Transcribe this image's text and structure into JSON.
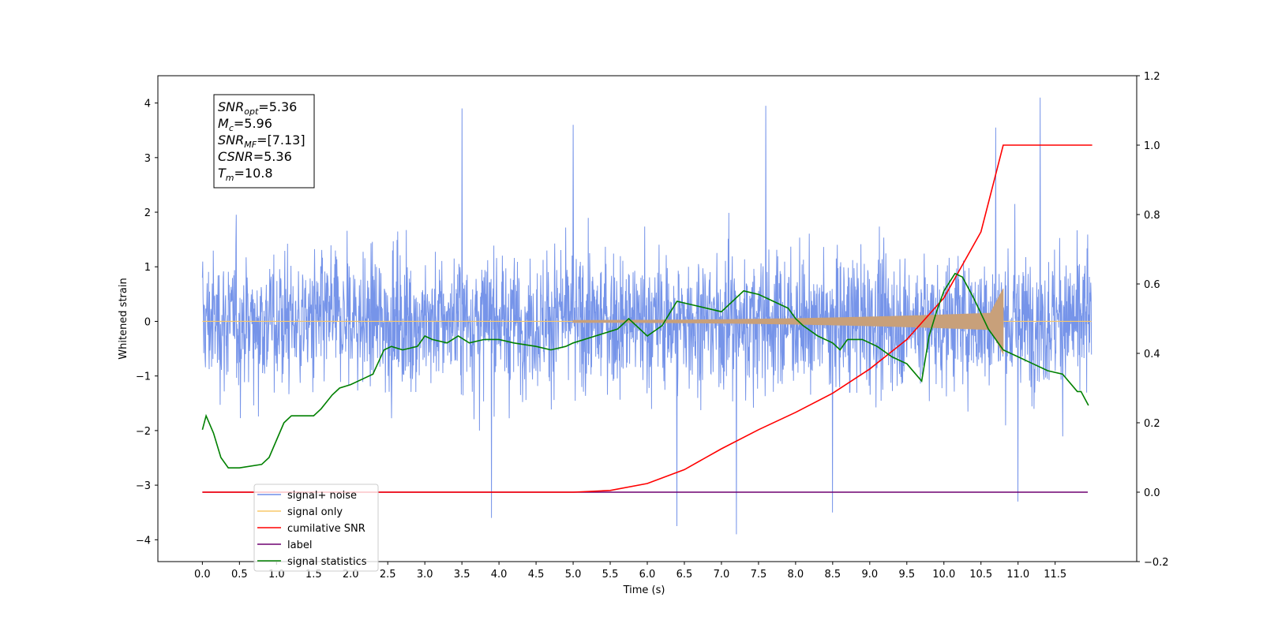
{
  "chart_data": {
    "type": "line",
    "xlabel": "Time (s)",
    "ylabel": "Whitened strain",
    "xlim": [
      -0.6,
      12.6
    ],
    "ylim": [
      -4.4,
      4.5
    ],
    "y2lim": [
      -0.2,
      1.2
    ],
    "xticks": [
      "0.0",
      "0.5",
      "1.0",
      "1.5",
      "2.0",
      "2.5",
      "3.0",
      "3.5",
      "4.0",
      "4.5",
      "5.0",
      "5.5",
      "6.0",
      "6.5",
      "7.0",
      "7.5",
      "8.0",
      "8.5",
      "9.0",
      "9.5",
      "10.0",
      "10.5",
      "11.0",
      "11.5"
    ],
    "yticks": [
      "4",
      "3",
      "2",
      "1",
      "0",
      "−1",
      "−2",
      "−3",
      "−4"
    ],
    "y2ticks": [
      "1.2",
      "1.0",
      "0.8",
      "0.6",
      "0.4",
      "0.2",
      "0.0",
      "−0.2"
    ],
    "stats_box": [
      {
        "sym": "SNR",
        "sub": "opt",
        "value": "=5.36"
      },
      {
        "sym": "M",
        "sub": "c",
        "value": "=5.96"
      },
      {
        "sym": "SNR",
        "sub": "MF",
        "value": "=[7.13]"
      },
      {
        "sym": "CSNR",
        "sub": "",
        "value": "=5.36"
      },
      {
        "sym": "T",
        "sub": "m",
        "value": "=10.8"
      }
    ],
    "legend": [
      {
        "label": "signal+ noise",
        "color": "#6f8ee8"
      },
      {
        "label": "signal only",
        "color": "#f8c86a"
      },
      {
        "label": "cumilative SNR",
        "color": "#ff0000"
      },
      {
        "label": "label",
        "color": "#6e0070"
      },
      {
        "label": "signal statistics",
        "color": "#008000"
      }
    ],
    "series": [
      {
        "name": "signal+ noise",
        "color": "#6f8ee8",
        "axis": "left",
        "x_range": [
          0.0,
          11.99
        ],
        "envelope": {
          "typical": 2.0,
          "max": 4.1,
          "min": -3.9
        },
        "peaks": [
          [
            3.5,
            3.9
          ],
          [
            7.6,
            3.95
          ],
          [
            11.3,
            4.1
          ],
          [
            5.0,
            3.6
          ],
          [
            10.7,
            3.55
          ],
          [
            7.2,
            -3.9
          ],
          [
            6.4,
            -3.75
          ],
          [
            3.9,
            -3.6
          ],
          [
            8.5,
            -3.5
          ],
          [
            11.0,
            -3.3
          ]
        ]
      },
      {
        "name": "signal only",
        "color": "#c8a07a",
        "axis": "left",
        "x_range": [
          0.0,
          11.99
        ],
        "chirp_end": 10.8,
        "amplitude_at_end": 0.6
      },
      {
        "name": "cumilative SNR",
        "color": "#ff0000",
        "axis": "right",
        "x": [
          0.0,
          5.0,
          5.5,
          6.0,
          6.5,
          7.0,
          7.5,
          8.0,
          8.5,
          9.0,
          9.5,
          10.0,
          10.5,
          10.8,
          12.0
        ],
        "y": [
          0.0,
          0.0,
          0.005,
          0.025,
          0.065,
          0.125,
          0.18,
          0.23,
          0.285,
          0.355,
          0.44,
          0.56,
          0.75,
          1.0,
          1.0
        ]
      },
      {
        "name": "label",
        "color": "#6e0070",
        "axis": "right",
        "x": [
          0.0,
          11.94
        ],
        "y": [
          0.0,
          0.0
        ]
      },
      {
        "name": "signal statistics",
        "color": "#008000",
        "axis": "right",
        "x": [
          0.0,
          0.05,
          0.15,
          0.25,
          0.35,
          0.5,
          0.8,
          0.9,
          1.0,
          1.1,
          1.2,
          1.3,
          1.5,
          1.6,
          1.75,
          1.85,
          2.0,
          2.2,
          2.3,
          2.45,
          2.55,
          2.7,
          2.9,
          3.0,
          3.1,
          3.3,
          3.45,
          3.6,
          3.8,
          4.0,
          4.2,
          4.5,
          4.7,
          4.9,
          5.0,
          5.3,
          5.6,
          5.75,
          6.0,
          6.2,
          6.4,
          6.6,
          6.8,
          7.0,
          7.2,
          7.3,
          7.5,
          7.7,
          7.9,
          8.0,
          8.1,
          8.3,
          8.5,
          8.6,
          8.7,
          8.9,
          9.1,
          9.3,
          9.5,
          9.7,
          9.8,
          9.9,
          10.0,
          10.15,
          10.25,
          10.4,
          10.6,
          10.8,
          11.0,
          11.2,
          11.4,
          11.6,
          11.8,
          11.85,
          11.95
        ],
        "y": [
          0.18,
          0.22,
          0.17,
          0.1,
          0.07,
          0.07,
          0.08,
          0.1,
          0.15,
          0.2,
          0.22,
          0.22,
          0.22,
          0.24,
          0.28,
          0.3,
          0.31,
          0.33,
          0.34,
          0.41,
          0.42,
          0.41,
          0.42,
          0.45,
          0.44,
          0.43,
          0.45,
          0.43,
          0.44,
          0.44,
          0.43,
          0.42,
          0.41,
          0.42,
          0.43,
          0.45,
          0.47,
          0.5,
          0.45,
          0.48,
          0.55,
          0.54,
          0.53,
          0.52,
          0.56,
          0.58,
          0.57,
          0.55,
          0.53,
          0.5,
          0.48,
          0.45,
          0.43,
          0.41,
          0.44,
          0.44,
          0.42,
          0.39,
          0.37,
          0.32,
          0.45,
          0.52,
          0.58,
          0.63,
          0.62,
          0.56,
          0.47,
          0.41,
          0.39,
          0.37,
          0.35,
          0.34,
          0.29,
          0.29,
          0.25
        ]
      }
    ]
  }
}
